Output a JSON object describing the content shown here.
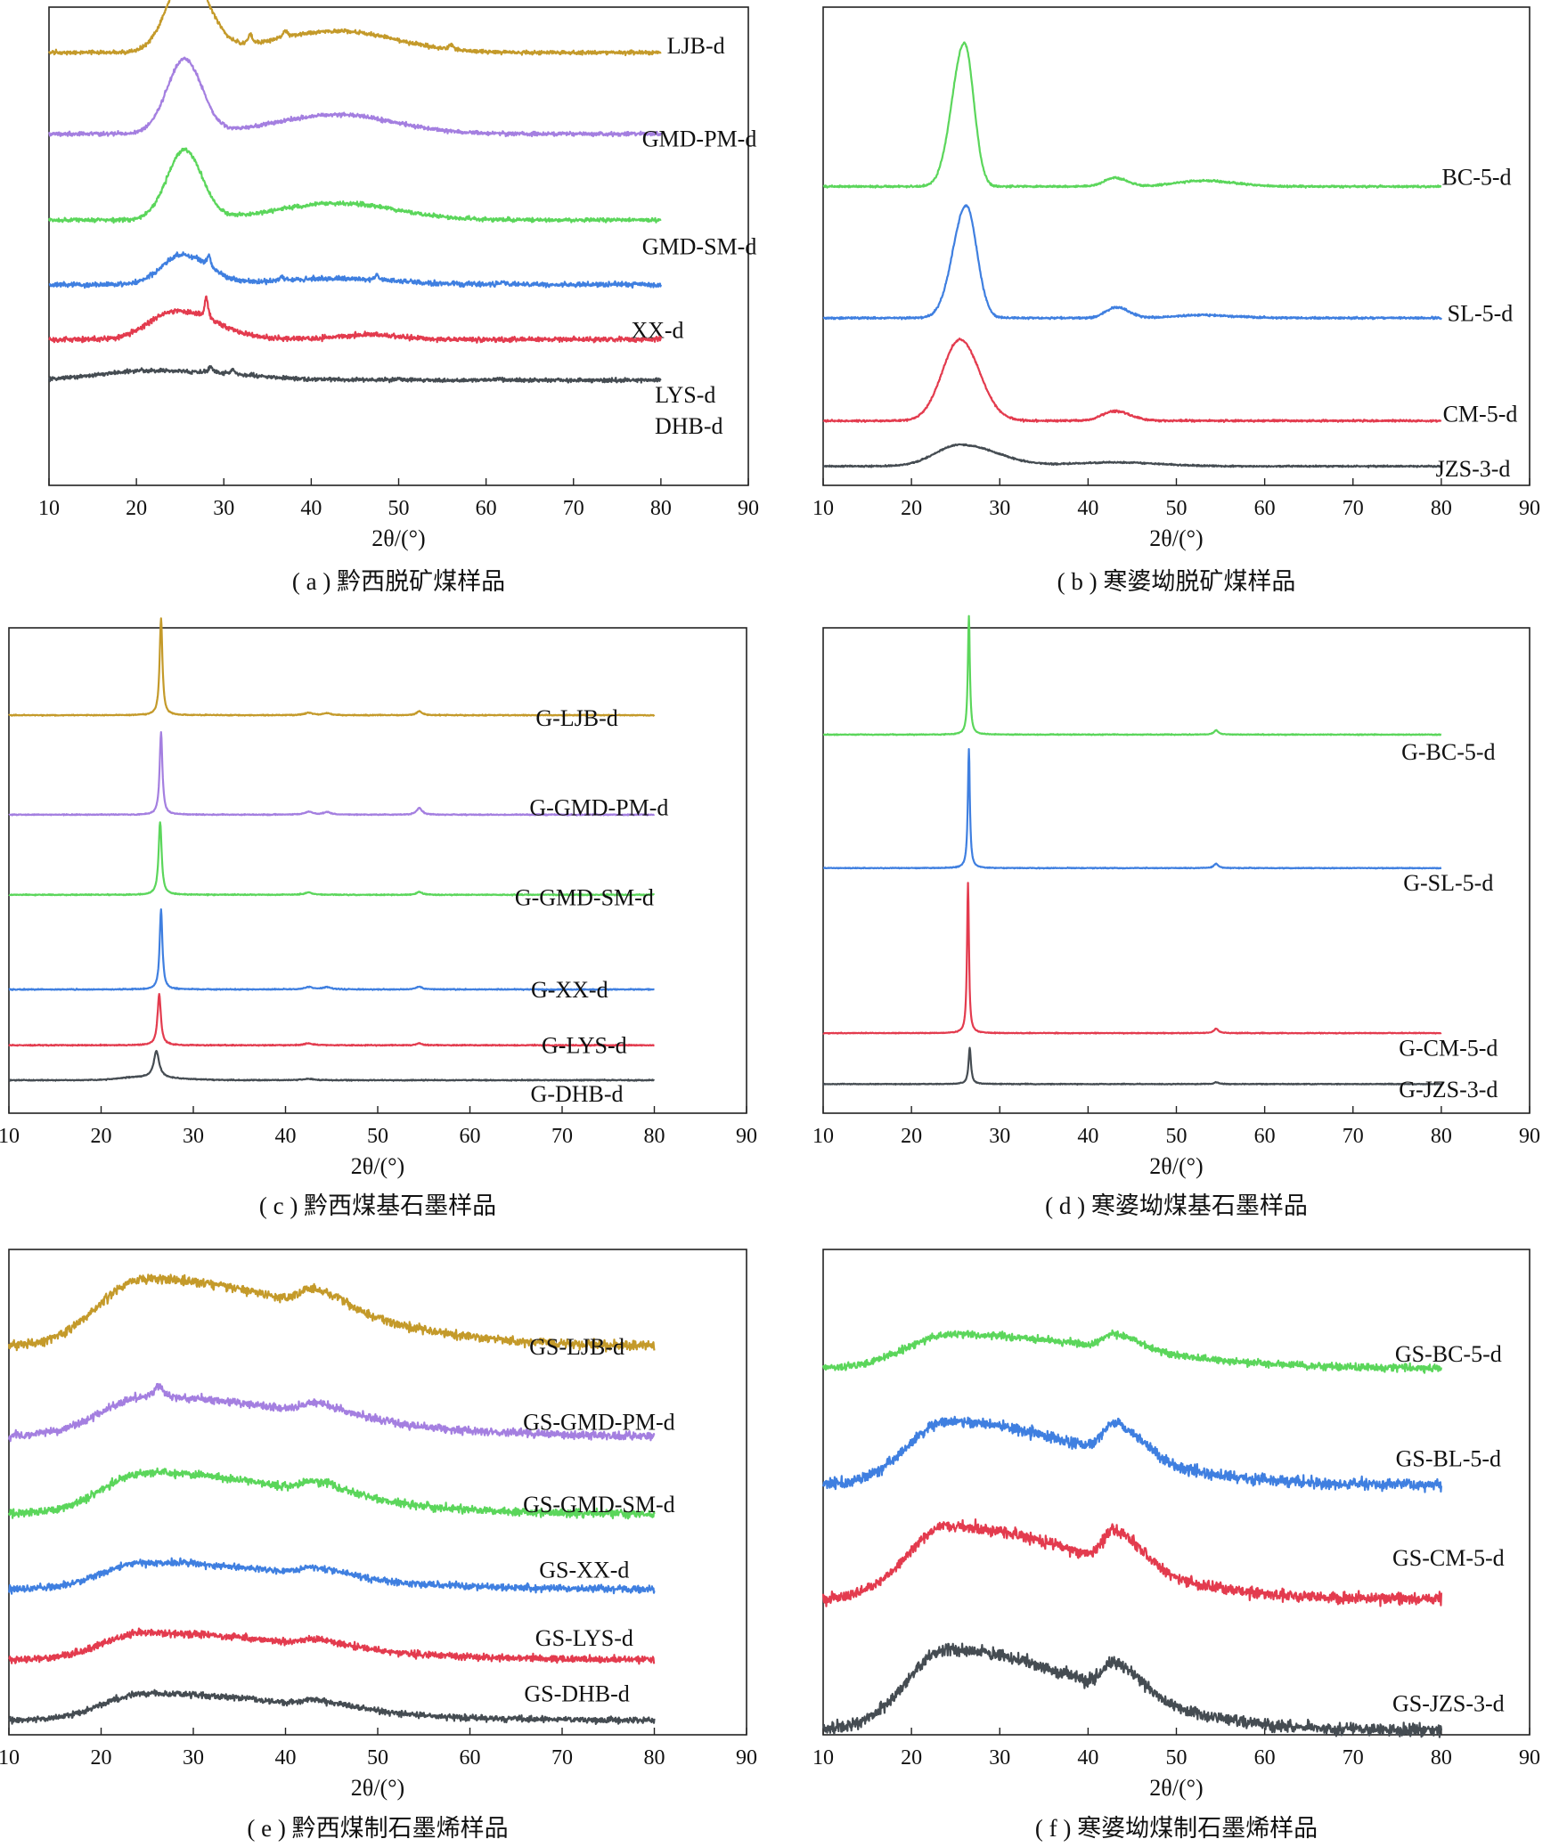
{
  "figure": {
    "colors": {
      "gold": "#C49A2A",
      "purple": "#A47FE0",
      "green": "#5BD65B",
      "blue": "#3F7FE0",
      "red": "#E33B4E",
      "gray": "#454C52",
      "axis": "#222222"
    },
    "axis_xlabel": "2θ/(°)"
  },
  "chart_data": [
    {
      "id": "a",
      "type": "line",
      "caption": "( a ) 黔西脱矿煤样品",
      "xlabel": "2θ/(°)",
      "xlim": [
        10,
        90
      ],
      "xticks": [
        10,
        20,
        30,
        40,
        50,
        60,
        70,
        80,
        90
      ],
      "grid": false,
      "series": [
        {
          "name": "LJB-d",
          "color": "gold",
          "x_range": [
            10,
            80
          ],
          "baseline": 0.905,
          "broad": [
            [
              25.8,
              0.165,
              2.2,
              1.1
            ],
            [
              43,
              0.045,
              7,
              0.95
            ]
          ],
          "sharp": [
            [
              33,
              0.02,
              0.3
            ],
            [
              37,
              0.015,
              0.3
            ],
            [
              56,
              0.01,
              0.3
            ]
          ],
          "noise": 0.004
        },
        {
          "name": "GMD-PM-d",
          "color": "purple",
          "x_range": [
            10,
            80
          ],
          "baseline": 0.735,
          "broad": [
            [
              25.5,
              0.155,
              2.0,
              1.0
            ],
            [
              43,
              0.04,
              7,
              0.95
            ]
          ],
          "noise": 0.004
        },
        {
          "name": "GMD-SM-d",
          "color": "green",
          "x_range": [
            10,
            80
          ],
          "baseline": 0.555,
          "broad": [
            [
              25.5,
              0.145,
              2.0,
              1.0
            ],
            [
              43,
              0.035,
              7,
              0.95
            ]
          ],
          "noise": 0.004
        },
        {
          "name": "XX-d",
          "color": "blue",
          "x_range": [
            10,
            80
          ],
          "baseline": 0.42,
          "broad": [
            [
              25.3,
              0.062,
              2.4,
              1.2
            ],
            [
              43,
              0.012,
              7,
              0.95
            ]
          ],
          "sharp": [
            [
              28.3,
              0.025,
              0.25
            ],
            [
              36.6,
              0.01,
              0.25
            ],
            [
              47.5,
              0.012,
              0.25
            ],
            [
              62,
              0.006,
              0.25
            ]
          ],
          "noise": 0.005
        },
        {
          "name": "LYS-d",
          "color": "red",
          "x_range": [
            10,
            80
          ],
          "baseline": 0.305,
          "broad": [
            [
              24.5,
              0.06,
              3.0,
              1.5
            ],
            [
              47,
              0.01,
              4,
              0.8
            ]
          ],
          "sharp": [
            [
              28,
              0.045,
              0.22
            ]
          ],
          "noise": 0.005
        },
        {
          "name": "DHB-d",
          "color": "gray",
          "x_range": [
            10,
            80
          ],
          "baseline": 0.22,
          "broad": [
            [
              22,
              0.02,
              6,
              1.5
            ]
          ],
          "sharp": [
            [
              28.5,
              0.015,
              0.22
            ],
            [
              31,
              0.012,
              0.22
            ],
            [
              50,
              0.005,
              0.25
            ],
            [
              61.5,
              0.004,
              0.25
            ]
          ],
          "noise": 0.004
        }
      ],
      "label_pos": [
        [
          0.925,
          0.08
        ],
        [
          0.93,
          0.275
        ],
        [
          0.93,
          0.5
        ],
        [
          0.87,
          0.675
        ],
        [
          0.91,
          0.81
        ],
        [
          0.915,
          0.875
        ]
      ]
    },
    {
      "id": "b",
      "type": "line",
      "caption": "( b ) 寒婆坳脱矿煤样品",
      "xlabel": "2θ/(°)",
      "xlim": [
        10,
        90
      ],
      "xticks": [
        10,
        20,
        30,
        40,
        50,
        60,
        70,
        80,
        90
      ],
      "grid": false,
      "series": [
        {
          "name": "BC-5-d",
          "color": "green",
          "x_range": [
            10,
            80
          ],
          "baseline": 0.625,
          "broad": [
            [
              26,
              0.3,
              1.4,
              0.75
            ],
            [
              43,
              0.018,
              1.2,
              1.2
            ],
            [
              53,
              0.012,
              3,
              1.2
            ]
          ],
          "noise": 0.002
        },
        {
          "name": "SL-5-d",
          "color": "blue",
          "x_range": [
            10,
            80
          ],
          "baseline": 0.35,
          "broad": [
            [
              26.2,
              0.235,
              1.5,
              0.8
            ],
            [
              43.2,
              0.022,
              1.2,
              1.2
            ],
            [
              53,
              0.006,
              3,
              1.2
            ]
          ],
          "noise": 0.002
        },
        {
          "name": "CM-5-d",
          "color": "red",
          "x_range": [
            10,
            80
          ],
          "baseline": 0.135,
          "broad": [
            [
              25.5,
              0.17,
              2.0,
              1.1
            ],
            [
              43,
              0.02,
              1.4,
              1.3
            ]
          ],
          "noise": 0.002
        },
        {
          "name": "JZS-3-d",
          "color": "gray",
          "x_range": [
            10,
            80
          ],
          "baseline": 0.04,
          "broad": [
            [
              25.5,
              0.045,
              2.8,
              1.5
            ],
            [
              43,
              0.008,
              5,
              1
            ]
          ],
          "noise": 0.0015
        }
      ],
      "label_pos": [
        [
          0.925,
          0.355
        ],
        [
          0.93,
          0.64
        ],
        [
          0.93,
          0.85
        ],
        [
          0.92,
          0.965
        ]
      ]
    },
    {
      "id": "c",
      "type": "line",
      "caption": "( c ) 黔西煤基石墨样品",
      "xlabel": "2θ/(°)",
      "xlim": [
        10,
        90
      ],
      "xticks": [
        10,
        20,
        30,
        40,
        50,
        60,
        70,
        80,
        90
      ],
      "grid": false,
      "series": [
        {
          "name": "G-LJB-d",
          "color": "gold",
          "x_range": [
            10,
            80
          ],
          "baseline": 0.82,
          "sharp": [
            [
              26.5,
              0.2,
              0.18
            ],
            [
              42.5,
              0.005,
              0.5
            ],
            [
              44.5,
              0.004,
              0.5
            ],
            [
              54.5,
              0.008,
              0.35
            ]
          ],
          "noise": 0.001
        },
        {
          "name": "G-GMD-PM-d",
          "color": "purple",
          "x_range": [
            10,
            80
          ],
          "baseline": 0.615,
          "sharp": [
            [
              26.5,
              0.17,
              0.18
            ],
            [
              42.5,
              0.006,
              0.5
            ],
            [
              44.5,
              0.005,
              0.5
            ],
            [
              54.5,
              0.014,
              0.35
            ]
          ],
          "noise": 0.001
        },
        {
          "name": "G-GMD-SM-d",
          "color": "green",
          "x_range": [
            10,
            80
          ],
          "baseline": 0.45,
          "sharp": [
            [
              26.4,
              0.15,
              0.2
            ],
            [
              42.5,
              0.005,
              0.5
            ],
            [
              54.5,
              0.006,
              0.35
            ]
          ],
          "noise": 0.001
        },
        {
          "name": "G-XX-d",
          "color": "blue",
          "x_range": [
            10,
            80
          ],
          "baseline": 0.255,
          "sharp": [
            [
              26.5,
              0.165,
              0.18
            ],
            [
              42.5,
              0.005,
              0.5
            ],
            [
              44.5,
              0.005,
              0.5
            ],
            [
              54.5,
              0.006,
              0.35
            ]
          ],
          "noise": 0.001
        },
        {
          "name": "G-LYS-d",
          "color": "red",
          "x_range": [
            10,
            80
          ],
          "baseline": 0.14,
          "sharp": [
            [
              26.3,
              0.105,
              0.22
            ],
            [
              42.5,
              0.004,
              0.5
            ],
            [
              54.5,
              0.004,
              0.35
            ]
          ],
          "noise": 0.001
        },
        {
          "name": "G-DHB-d",
          "color": "gray",
          "x_range": [
            10,
            80
          ],
          "baseline": 0.068,
          "sharp": [
            [
              26,
              0.055,
              0.35
            ],
            [
              42.5,
              0.003,
              0.6
            ]
          ],
          "broad": [
            [
              24,
              0.006,
              2,
              2
            ]
          ],
          "noise": 0.001
        }
      ],
      "label_pos": [
        [
          0.77,
          0.185
        ],
        [
          0.8,
          0.37
        ],
        [
          0.78,
          0.555
        ],
        [
          0.76,
          0.745
        ],
        [
          0.78,
          0.86
        ],
        [
          0.77,
          0.96
        ]
      ]
    },
    {
      "id": "d",
      "type": "line",
      "caption": "( d ) 寒婆坳煤基石墨样品",
      "xlabel": "2θ/(°)",
      "xlim": [
        10,
        90
      ],
      "xticks": [
        10,
        20,
        30,
        40,
        50,
        60,
        70,
        80,
        90
      ],
      "grid": false,
      "series": [
        {
          "name": "G-BC-5-d",
          "color": "green",
          "x_range": [
            10,
            80
          ],
          "baseline": 0.78,
          "sharp": [
            [
              26.5,
              0.245,
              0.14
            ],
            [
              54.5,
              0.009,
              0.3
            ]
          ],
          "noise": 0.0008
        },
        {
          "name": "G-SL-5-d",
          "color": "blue",
          "x_range": [
            10,
            80
          ],
          "baseline": 0.505,
          "sharp": [
            [
              26.5,
              0.245,
              0.14
            ],
            [
              54.5,
              0.009,
              0.3
            ]
          ],
          "noise": 0.0008
        },
        {
          "name": "G-CM-5-d",
          "color": "red",
          "x_range": [
            10,
            80
          ],
          "baseline": 0.165,
          "sharp": [
            [
              26.4,
              0.31,
              0.13
            ],
            [
              54.5,
              0.009,
              0.3
            ]
          ],
          "noise": 0.0008
        },
        {
          "name": "G-JZS-3-d",
          "color": "gray",
          "x_range": [
            10,
            80
          ],
          "baseline": 0.06,
          "sharp": [
            [
              26.6,
              0.075,
              0.17
            ],
            [
              54.5,
              0.004,
              0.3
            ]
          ],
          "noise": 0.0008
        }
      ],
      "label_pos": [
        [
          0.885,
          0.255
        ],
        [
          0.885,
          0.525
        ],
        [
          0.885,
          0.865
        ],
        [
          0.885,
          0.95
        ]
      ]
    },
    {
      "id": "e",
      "type": "line",
      "caption": "( e ) 黔西煤制石墨烯样品",
      "xlabel": "2θ/(°)",
      "xlim": [
        10,
        90
      ],
      "xticks": [
        10,
        20,
        30,
        40,
        50,
        60,
        70,
        80,
        90
      ],
      "grid": false,
      "series": [
        {
          "name": "GS-LJB-d",
          "color": "gold",
          "x_range": [
            10,
            80
          ],
          "baseline": 0.8,
          "broad": [
            [
              24.8,
              0.14,
              5,
              3.6
            ],
            [
              43,
              0.035,
              1.3,
              3
            ]
          ],
          "noise": 0.009
        },
        {
          "name": "GS-GMD-PM-d",
          "color": "purple",
          "x_range": [
            10,
            80
          ],
          "baseline": 0.615,
          "broad": [
            [
              25,
              0.08,
              5,
              3.6
            ],
            [
              43,
              0.02,
              1.3,
              3
            ]
          ],
          "sharp": [
            [
              26.2,
              0.025,
              0.5
            ]
          ],
          "noise": 0.008
        },
        {
          "name": "GS-GMD-SM-d",
          "color": "green",
          "x_range": [
            10,
            80
          ],
          "baseline": 0.455,
          "broad": [
            [
              24.8,
              0.085,
              4.6,
              3.6
            ],
            [
              43,
              0.022,
              1.3,
              3
            ]
          ],
          "noise": 0.008
        },
        {
          "name": "GS-XX-d",
          "color": "blue",
          "x_range": [
            10,
            80
          ],
          "baseline": 0.3,
          "broad": [
            [
              24.8,
              0.055,
              4.6,
              3.6
            ],
            [
              43,
              0.015,
              1.3,
              3
            ]
          ],
          "noise": 0.007
        },
        {
          "name": "GS-LYS-d",
          "color": "red",
          "x_range": [
            10,
            80
          ],
          "baseline": 0.155,
          "broad": [
            [
              24.8,
              0.055,
              4.6,
              3.6
            ],
            [
              43,
              0.012,
              1.3,
              3
            ]
          ],
          "noise": 0.007
        },
        {
          "name": "GS-DHB-d",
          "color": "gray",
          "x_range": [
            10,
            80
          ],
          "baseline": 0.03,
          "broad": [
            [
              24.8,
              0.055,
              4.6,
              3.6
            ],
            [
              43,
              0.012,
              1.3,
              3
            ]
          ],
          "noise": 0.006
        }
      ],
      "label_pos": [
        [
          0.77,
          0.2
        ],
        [
          0.8,
          0.355
        ],
        [
          0.8,
          0.525
        ],
        [
          0.78,
          0.66
        ],
        [
          0.78,
          0.8
        ],
        [
          0.77,
          0.915
        ]
      ]
    },
    {
      "id": "f",
      "type": "line",
      "caption": "( f ) 寒婆坳煤制石墨烯样品",
      "xlabel": "2θ/(°)",
      "xlim": [
        10,
        90
      ],
      "xticks": [
        10,
        20,
        30,
        40,
        50,
        60,
        70,
        80,
        90
      ],
      "grid": false,
      "series": [
        {
          "name": "GS-BC-5-d",
          "color": "green",
          "x_range": [
            10,
            80
          ],
          "baseline": 0.755,
          "broad": [
            [
              24.5,
              0.07,
              5,
              3.6
            ],
            [
              43,
              0.03,
              1.2,
              2.5
            ]
          ],
          "noise": 0.007
        },
        {
          "name": "GS-BL-5-d",
          "color": "blue",
          "x_range": [
            10,
            80
          ],
          "baseline": 0.515,
          "broad": [
            [
              24,
              0.13,
              4.5,
              3.5
            ],
            [
              43,
              0.065,
              1.3,
              2.5
            ]
          ],
          "noise": 0.011
        },
        {
          "name": "GS-CM-5-d",
          "color": "red",
          "x_range": [
            10,
            80
          ],
          "baseline": 0.28,
          "broad": [
            [
              24,
              0.15,
              4.5,
              3.5
            ],
            [
              43,
              0.07,
              1.3,
              2.5
            ]
          ],
          "noise": 0.011
        },
        {
          "name": "GS-JZS-3-d",
          "color": "gray",
          "x_range": [
            10,
            80
          ],
          "baseline": 0.01,
          "broad": [
            [
              24,
              0.165,
              4.5,
              3.5
            ],
            [
              43,
              0.06,
              1.3,
              2.5
            ]
          ],
          "noise": 0.012
        }
      ],
      "label_pos": [
        [
          0.885,
          0.215
        ],
        [
          0.885,
          0.43
        ],
        [
          0.885,
          0.635
        ],
        [
          0.885,
          0.935
        ]
      ]
    }
  ]
}
